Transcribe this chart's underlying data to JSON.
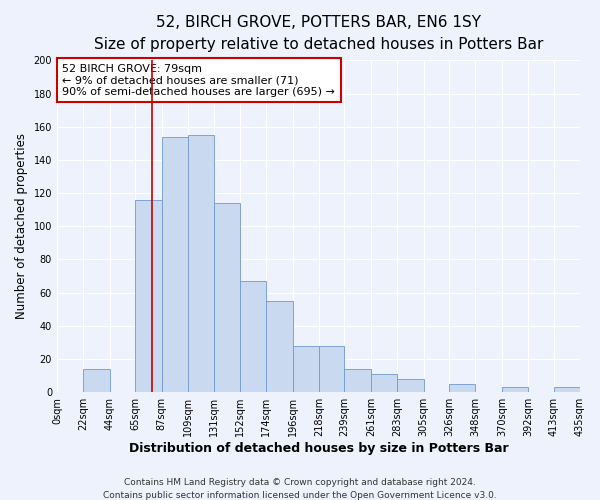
{
  "title": "52, BIRCH GROVE, POTTERS BAR, EN6 1SY",
  "subtitle": "Size of property relative to detached houses in Potters Bar",
  "xlabel": "Distribution of detached houses by size in Potters Bar",
  "ylabel": "Number of detached properties",
  "bin_edges": [
    0,
    22,
    44,
    65,
    87,
    109,
    131,
    152,
    174,
    196,
    218,
    239,
    261,
    283,
    305,
    326,
    348,
    370,
    392,
    413,
    435
  ],
  "bar_heights": [
    0,
    14,
    0,
    116,
    154,
    155,
    114,
    67,
    55,
    28,
    28,
    14,
    11,
    8,
    0,
    5,
    0,
    3,
    0,
    3
  ],
  "bar_color": "#c9d9f0",
  "bar_edgecolor": "#7099cc",
  "vline_x": 79,
  "vline_color": "#cc0000",
  "ylim": [
    0,
    200
  ],
  "yticks": [
    0,
    20,
    40,
    60,
    80,
    100,
    120,
    140,
    160,
    180,
    200
  ],
  "annotation_title": "52 BIRCH GROVE: 79sqm",
  "annotation_line1": "← 9% of detached houses are smaller (71)",
  "annotation_line2": "90% of semi-detached houses are larger (695) →",
  "annotation_box_edgecolor": "#cc0000",
  "annotation_box_facecolor": "white",
  "footer_line1": "Contains HM Land Registry data © Crown copyright and database right 2024.",
  "footer_line2": "Contains public sector information licensed under the Open Government Licence v3.0.",
  "background_color": "#eef2fc",
  "title_fontsize": 11,
  "subtitle_fontsize": 9.5,
  "xlabel_fontsize": 9,
  "ylabel_fontsize": 8.5,
  "tick_fontsize": 7,
  "annotation_fontsize": 8,
  "footer_fontsize": 6.5
}
